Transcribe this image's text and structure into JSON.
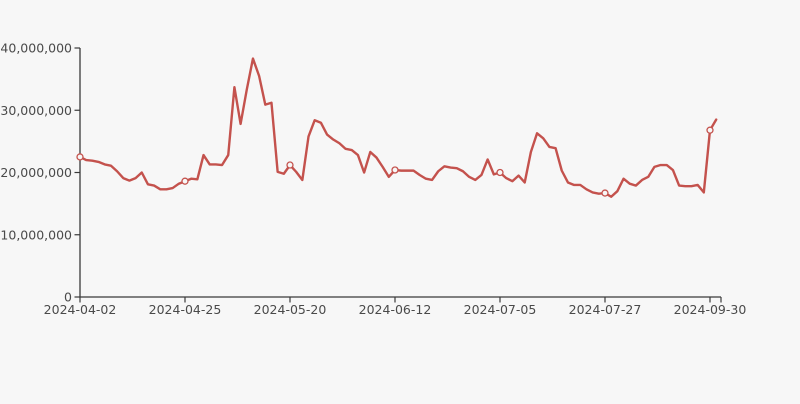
{
  "page": {
    "background": "#f7f7f7",
    "title": ""
  },
  "chart_data": {
    "type": "line",
    "title": "",
    "xlabel": "",
    "ylabel": "",
    "legend": "none",
    "grid": false,
    "ylim": [
      0,
      40000000
    ],
    "y_ticks": [
      0,
      10000000,
      20000000,
      30000000,
      40000000
    ],
    "y_tick_labels": [
      "0",
      "10,000,000",
      "20,000,000",
      "30,000,000",
      "40,000,000"
    ],
    "x_tick_labels": [
      "2024-04-02",
      "2024-04-25",
      "2024-05-20",
      "2024-06-12",
      "2024-07-05",
      "2024-07-27",
      "2024-09-30"
    ],
    "x_tick_indices": [
      0,
      17,
      34,
      51,
      68,
      85,
      102
    ],
    "axis_end_tick": true,
    "line_color": "#c4524d",
    "marker_style": "open-circle",
    "marker_fill": "#f7f7f7",
    "marker_indices": [
      0,
      17,
      34,
      51,
      68,
      85,
      102
    ],
    "axis_color": "#3a3a3a",
    "label_color": "#4a4a4a",
    "values": [
      22500000,
      22000000,
      21900000,
      21700000,
      21300000,
      21100000,
      20200000,
      19100000,
      18700000,
      19100000,
      20000000,
      18100000,
      17900000,
      17300000,
      17300000,
      17500000,
      18200000,
      18600000,
      19000000,
      18900000,
      22800000,
      21300000,
      21300000,
      21200000,
      22800000,
      33700000,
      27800000,
      33300000,
      38300000,
      35500000,
      30900000,
      31200000,
      20100000,
      19800000,
      21200000,
      20100000,
      18800000,
      25800000,
      28400000,
      28000000,
      26100000,
      25300000,
      24700000,
      23800000,
      23600000,
      22800000,
      20000000,
      23300000,
      22400000,
      20900000,
      19300000,
      20400000,
      20300000,
      20300000,
      20300000,
      19600000,
      19000000,
      18800000,
      20200000,
      21000000,
      20800000,
      20700000,
      20200000,
      19300000,
      18800000,
      19600000,
      22100000,
      19700000,
      20000000,
      19100000,
      18600000,
      19500000,
      18400000,
      23300000,
      26300000,
      25500000,
      24100000,
      23900000,
      20300000,
      18400000,
      18000000,
      18000000,
      17300000,
      16800000,
      16600000,
      16700000,
      16100000,
      17000000,
      19000000,
      18200000,
      17900000,
      18800000,
      19300000,
      20900000,
      21200000,
      21200000,
      20400000,
      17900000,
      17800000,
      17800000,
      18000000,
      16800000,
      26800000,
      28500000
    ]
  }
}
